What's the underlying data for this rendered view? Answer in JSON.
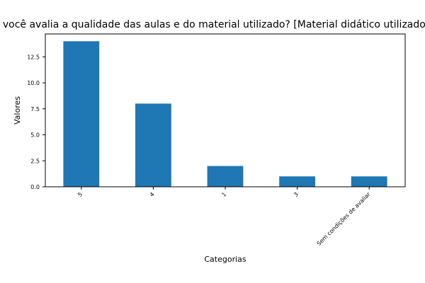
{
  "chart_data": {
    "type": "bar",
    "title": "Como você avalia a qualidade das aulas e do material utilizado?  [Material didático utilizado nas aulas]",
    "xlabel": "Categorias",
    "ylabel": "Valores",
    "categories": [
      "5",
      "4",
      "1",
      "3",
      "Sem condições de avaliar"
    ],
    "values": [
      14,
      8,
      2,
      1,
      1
    ],
    "yticks": [
      "0.0",
      "2.5",
      "5.0",
      "7.5",
      "10.0",
      "12.5"
    ],
    "ylim": [
      0,
      14.7
    ],
    "bar_color": "#1f77b4",
    "grid": false,
    "legend": "none"
  }
}
